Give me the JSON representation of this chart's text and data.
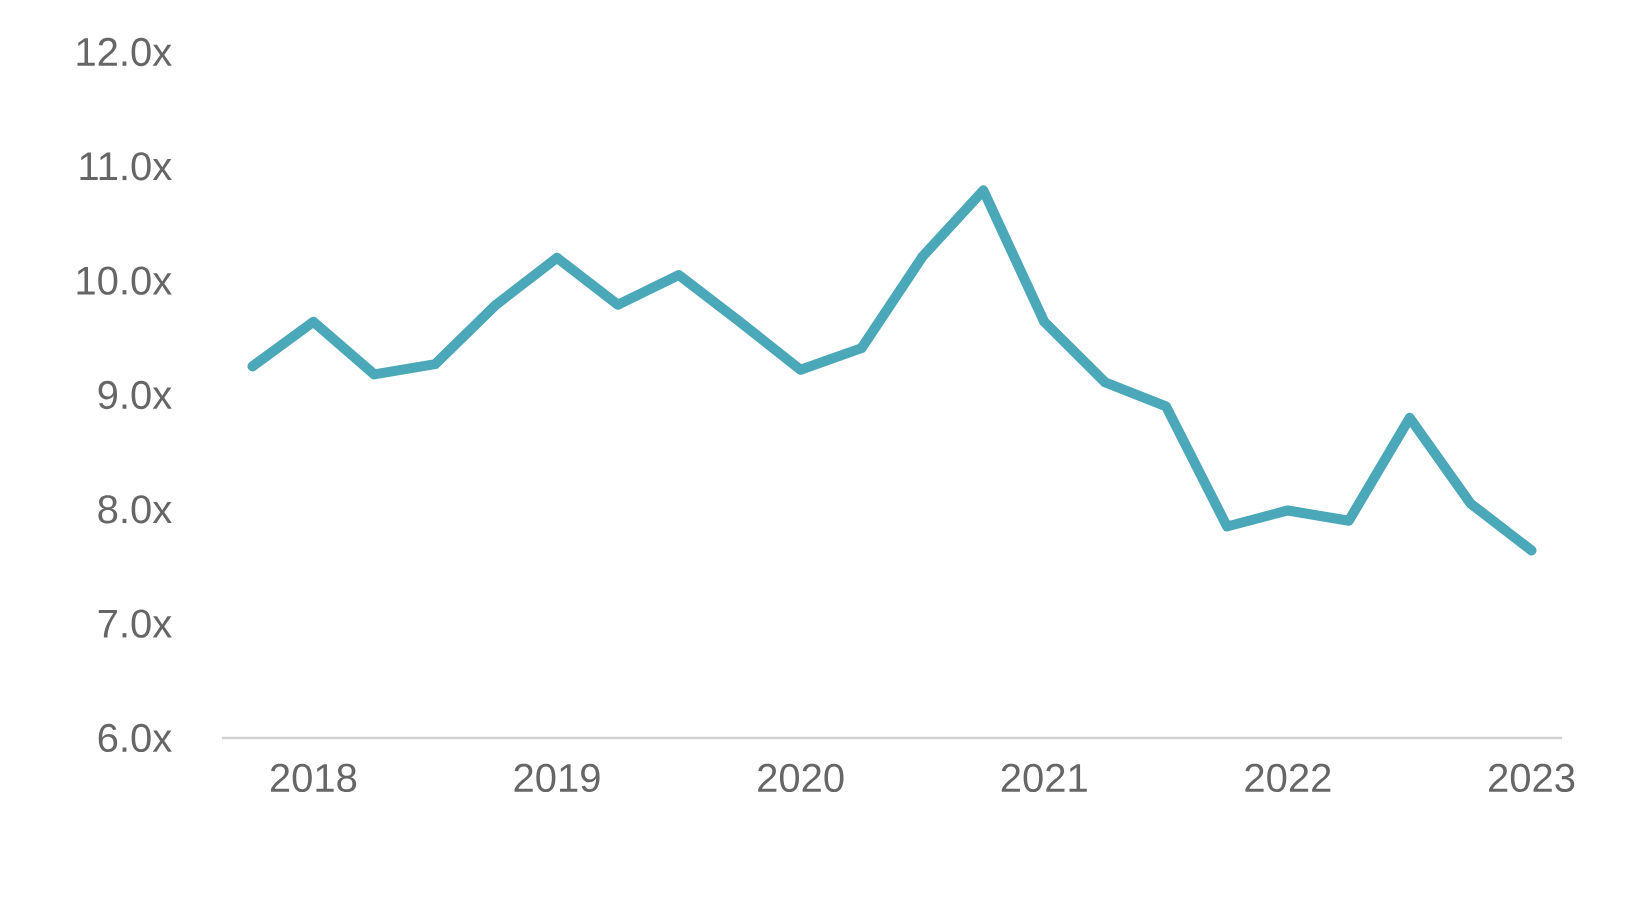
{
  "chart_data": {
    "type": "line",
    "categories": [
      null,
      "2018",
      null,
      null,
      null,
      "2019",
      null,
      null,
      null,
      "2020",
      null,
      null,
      null,
      "2021",
      null,
      null,
      null,
      "2022",
      null,
      null,
      null,
      "2023"
    ],
    "series": [
      {
        "color": "#4aa8b9",
        "values": [
          9.25,
          9.64,
          9.18,
          9.27,
          9.79,
          10.2,
          9.79,
          10.05,
          9.64,
          9.22,
          9.41,
          10.21,
          10.79,
          9.64,
          9.11,
          8.9,
          7.85,
          7.99,
          7.9,
          8.8,
          8.05,
          7.64
        ]
      }
    ],
    "ylim": [
      6,
      12
    ],
    "yticks": [
      {
        "value": 6,
        "label": "6.0x"
      },
      {
        "value": 7,
        "label": "7.0x"
      },
      {
        "value": 8,
        "label": "8.0x"
      },
      {
        "value": 9,
        "label": "9.0x"
      },
      {
        "value": 10,
        "label": "10.0x"
      },
      {
        "value": 11,
        "label": "11.0x"
      },
      {
        "value": 12,
        "label": "12.0x"
      }
    ],
    "grid": false,
    "marker": "none",
    "line_style": "solid"
  }
}
